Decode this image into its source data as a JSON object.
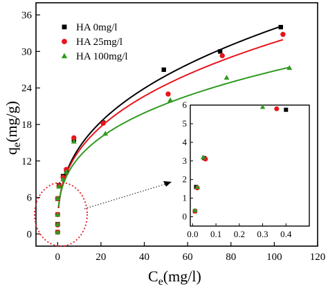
{
  "chart_data": [
    {
      "type": "scatter",
      "xlabel": "C",
      "xlabel_sub": "e",
      "xlabel_unit": "(mg/l)",
      "ylabel": "q",
      "ylabel_sub": "e",
      "ylabel_unit": "(mg/g)",
      "xlim": [
        -10,
        120
      ],
      "ylim": [
        -2,
        38
      ],
      "xticks": [
        0,
        20,
        40,
        60,
        80,
        100,
        120
      ],
      "yticks": [
        0,
        6,
        12,
        18,
        24,
        30,
        36
      ],
      "grid": false,
      "legend_position": "top-left",
      "series": [
        {
          "name": "HA 0mg/l",
          "marker": "square",
          "color": "#000000",
          "points": [
            [
              0,
              0.3
            ],
            [
              0,
              1.6
            ],
            [
              0,
              3.2
            ],
            [
              0,
              5.8
            ],
            [
              0.6,
              8.0
            ],
            [
              2.5,
              9.5
            ],
            [
              4,
              10.5
            ],
            [
              7.5,
              15.5
            ],
            [
              21,
              18.3
            ],
            [
              49,
              27.0
            ],
            [
              75,
              30.0
            ],
            [
              103,
              34.0
            ]
          ],
          "fit": {
            "K": 6.0,
            "n": 0.375
          }
        },
        {
          "name": "HA 25mg/l",
          "marker": "circle",
          "color": "#e8141c",
          "points": [
            [
              0,
              0.3
            ],
            [
              0,
              1.5
            ],
            [
              0,
              3.2
            ],
            [
              0,
              5.8
            ],
            [
              0.6,
              7.9
            ],
            [
              2.5,
              9.3
            ],
            [
              4,
              10.6
            ],
            [
              7.5,
              15.8
            ],
            [
              21,
              18.2
            ],
            [
              51,
              23.0
            ],
            [
              76,
              29.3
            ],
            [
              104,
              32.8
            ]
          ],
          "fit": {
            "K": 6.0,
            "n": 0.36
          }
        },
        {
          "name": "HA 100mg/l",
          "marker": "triangle",
          "color": "#2f9a1f",
          "points": [
            [
              0,
              0.3
            ],
            [
              0,
              1.6
            ],
            [
              0,
              3.2
            ],
            [
              0,
              5.9
            ],
            [
              0.6,
              7.8
            ],
            [
              2.5,
              9.0
            ],
            [
              4,
              10.2
            ],
            [
              7.5,
              15.2
            ],
            [
              22,
              16.5
            ],
            [
              52,
              22.0
            ],
            [
              78,
              25.7
            ],
            [
              107,
              27.3
            ]
          ],
          "fit": {
            "K": 6.0,
            "n": 0.325
          }
        }
      ]
    },
    {
      "type": "scatter",
      "role": "inset",
      "xlim": [
        -0.01,
        0.5
      ],
      "ylim": [
        -0.5,
        6
      ],
      "xticks": [
        0.0,
        0.1,
        0.2,
        0.3,
        0.4
      ],
      "xtick_labels": [
        "0.0",
        "0.1",
        "0.2",
        "0.3",
        "0.4"
      ],
      "yticks": [
        0,
        1,
        2,
        3,
        4,
        5,
        6
      ],
      "series": [
        {
          "name": "HA 0mg/l",
          "marker": "square",
          "color": "#000000",
          "points": [
            [
              0.01,
              0.3
            ],
            [
              0.015,
              1.6
            ],
            [
              0.05,
              3.15
            ],
            [
              0.4,
              5.75
            ]
          ]
        },
        {
          "name": "HA 25mg/l",
          "marker": "circle",
          "color": "#e8141c",
          "points": [
            [
              0.01,
              0.3
            ],
            [
              0.02,
              1.55
            ],
            [
              0.055,
              3.1
            ],
            [
              0.36,
              5.8
            ]
          ]
        },
        {
          "name": "HA 100mg/l",
          "marker": "triangle",
          "color": "#2f9a1f",
          "points": [
            [
              0.01,
              0.35
            ],
            [
              0.02,
              1.6
            ],
            [
              0.045,
              3.2
            ],
            [
              0.3,
              5.9
            ]
          ]
        }
      ]
    }
  ]
}
